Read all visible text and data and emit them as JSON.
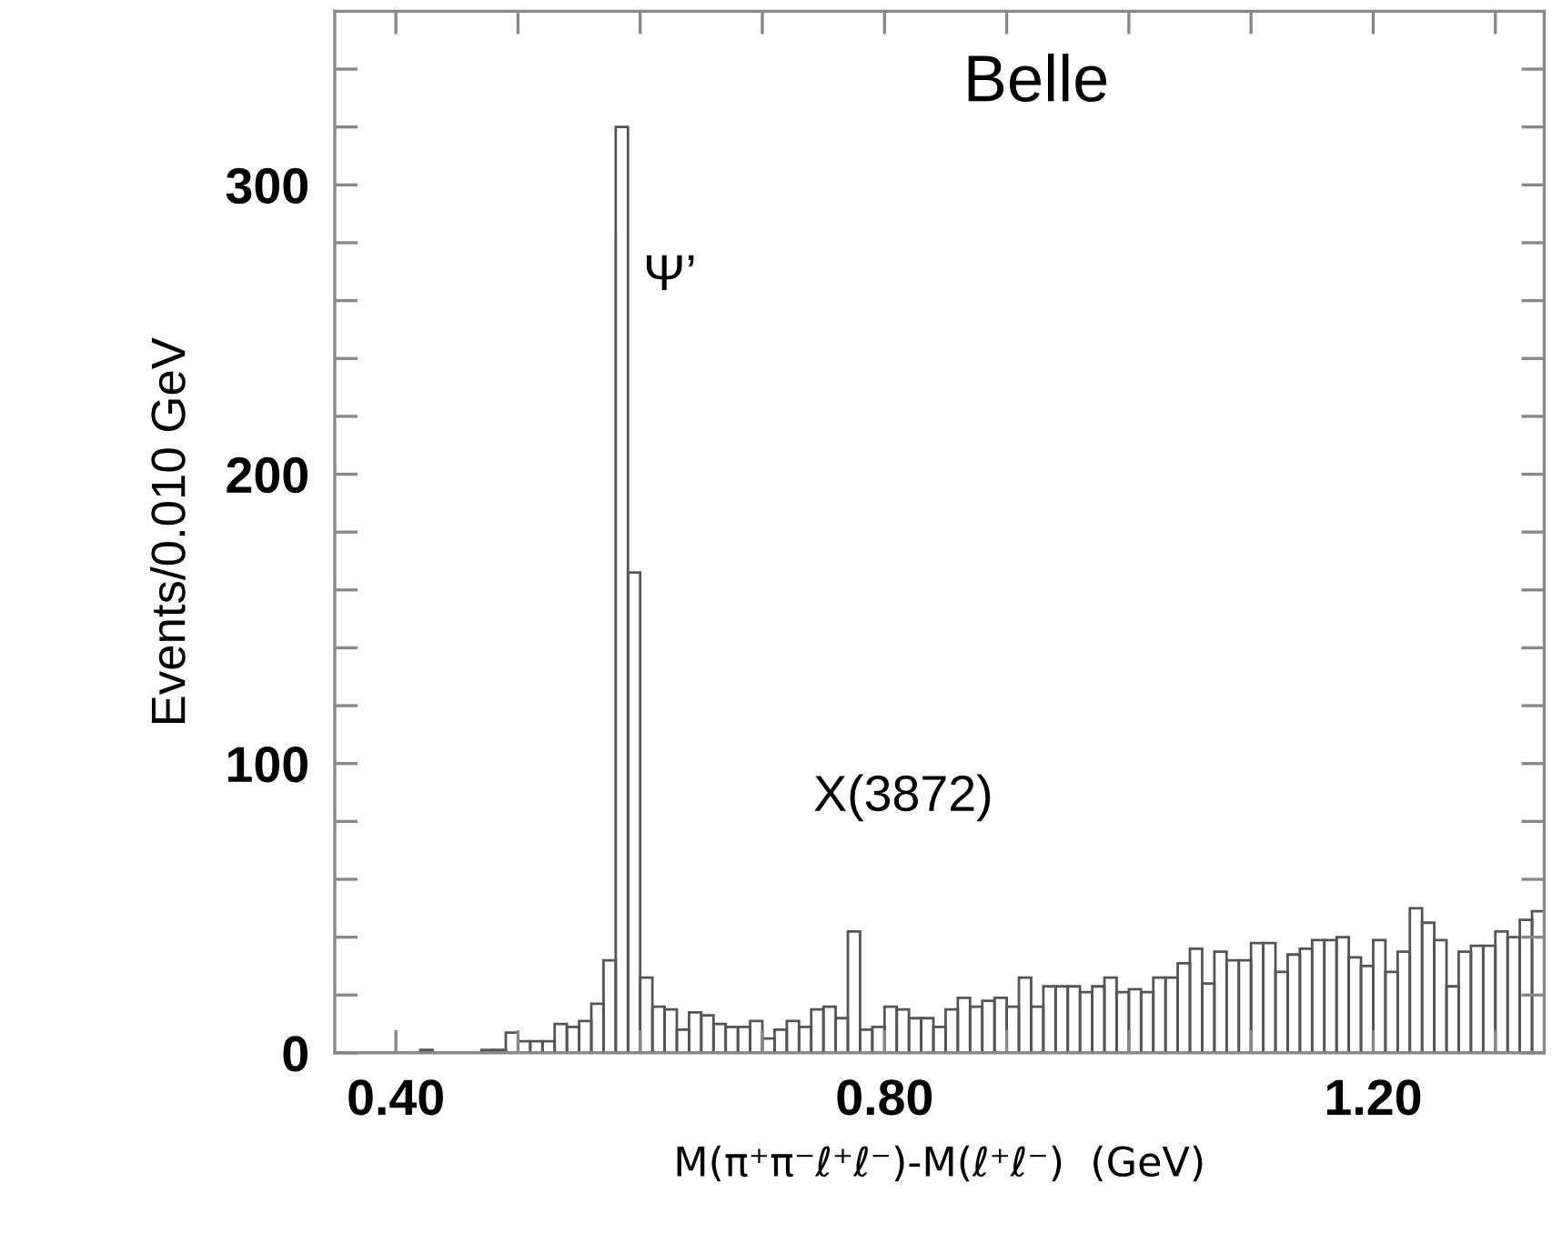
{
  "chart_data": {
    "type": "histogram",
    "xlabel": "M(π⁺π⁻ℓ⁺ℓ⁻)-M(ℓ⁺ℓ⁻)  (GeV)",
    "ylabel": "Events/0.010 GeV",
    "annotations": [
      "Belle",
      "Ψ’",
      "X(3872)"
    ],
    "bins": [
      0.35,
      0.36,
      0.37,
      0.38,
      0.39,
      0.4,
      0.41,
      0.42,
      0.43,
      0.44,
      0.45,
      0.46,
      0.47,
      0.48,
      0.49,
      0.5,
      0.51,
      0.52,
      0.53,
      0.54,
      0.55,
      0.56,
      0.57,
      0.58,
      0.59,
      0.6,
      0.61,
      0.62,
      0.63,
      0.64,
      0.65,
      0.66,
      0.67,
      0.68,
      0.69,
      0.7,
      0.71,
      0.72,
      0.73,
      0.74,
      0.75,
      0.76,
      0.77,
      0.78,
      0.79,
      0.8,
      0.81,
      0.82,
      0.83,
      0.84,
      0.85,
      0.86,
      0.87,
      0.88,
      0.89,
      0.9,
      0.91,
      0.92,
      0.93,
      0.94,
      0.95,
      0.96,
      0.97,
      0.98,
      0.99,
      1.0,
      1.01,
      1.02,
      1.03,
      1.04,
      1.05,
      1.06,
      1.07,
      1.08,
      1.09,
      1.1,
      1.11,
      1.12,
      1.13,
      1.14,
      1.15,
      1.16,
      1.17,
      1.18,
      1.19,
      1.2,
      1.21,
      1.22,
      1.23,
      1.24,
      1.25,
      1.26,
      1.27,
      1.28,
      1.29,
      1.3,
      1.31,
      1.32,
      1.33,
      1.34
    ],
    "values": [
      0,
      0,
      0,
      0,
      0,
      0,
      0,
      1,
      0,
      0,
      0,
      0,
      1,
      1,
      7,
      4,
      4,
      4,
      10,
      9,
      11,
      17,
      32,
      320,
      166,
      26,
      16,
      15,
      8,
      14,
      13,
      10,
      9,
      9,
      11,
      5,
      8,
      11,
      9,
      15,
      16,
      12,
      42,
      8,
      9,
      16,
      15,
      12,
      12,
      9,
      15,
      19,
      16,
      18,
      19,
      16,
      26,
      16,
      23,
      23,
      23,
      21,
      23,
      26,
      21,
      22,
      21,
      26,
      26,
      31,
      36,
      24,
      35,
      32,
      32,
      38,
      38,
      28,
      34,
      36,
      39,
      39,
      40,
      33,
      30,
      39,
      28,
      35,
      50,
      45,
      39,
      23,
      35,
      37,
      37,
      42,
      40,
      46,
      49
    ],
    "color": "#555555",
    "xlim": [
      0.35,
      1.34
    ],
    "ylim": [
      0,
      360
    ],
    "xticks": [
      {
        "value": 0.4,
        "label": "0.40"
      },
      {
        "value": 0.5,
        "label": null
      },
      {
        "value": 0.6,
        "label": null
      },
      {
        "value": 0.7,
        "label": null
      },
      {
        "value": 0.8,
        "label": "0.80"
      },
      {
        "value": 0.9,
        "label": null
      },
      {
        "value": 1.0,
        "label": null
      },
      {
        "value": 1.1,
        "label": null
      },
      {
        "value": 1.2,
        "label": "1.20"
      },
      {
        "value": 1.3,
        "label": null
      }
    ],
    "yticks": [
      0,
      {
        "value": 20,
        "label": null
      },
      {
        "value": 40,
        "label": null
      },
      {
        "value": 60,
        "label": null
      },
      {
        "value": 80,
        "label": null
      },
      100,
      {
        "value": 120,
        "label": null
      },
      {
        "value": 140,
        "label": null
      },
      {
        "value": 160,
        "label": null
      },
      {
        "value": 180,
        "label": null
      },
      200,
      {
        "value": 220,
        "label": null
      },
      {
        "value": 240,
        "label": null
      },
      {
        "value": 260,
        "label": null
      },
      {
        "value": 280,
        "label": null
      },
      300,
      {
        "value": 320,
        "label": null
      },
      {
        "value": 340,
        "label": null
      }
    ],
    "grid": false
  }
}
